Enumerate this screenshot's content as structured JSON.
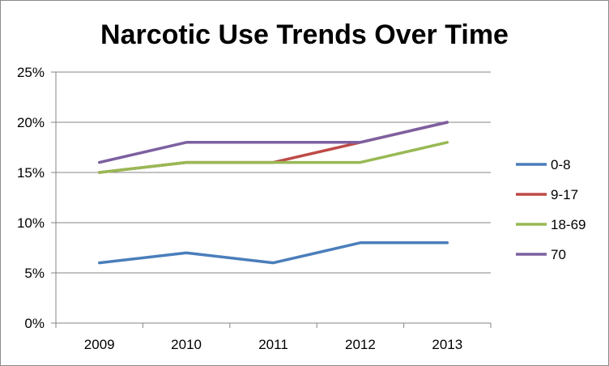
{
  "chart_data": {
    "type": "line",
    "title": "Narcotic Use Trends Over Time",
    "xlabel": "",
    "ylabel": "",
    "categories": [
      "2009",
      "2010",
      "2011",
      "2012",
      "2013"
    ],
    "ylim": [
      0,
      25
    ],
    "y_ticks": [
      0,
      5,
      10,
      15,
      20,
      25
    ],
    "y_tick_labels": [
      "0%",
      "5%",
      "10%",
      "15%",
      "20%",
      "25%"
    ],
    "grid": true,
    "legend_position": "right",
    "series": [
      {
        "name": "0-8",
        "color": "#4a7ebb",
        "values": [
          6,
          7,
          6,
          8,
          8
        ]
      },
      {
        "name": "9-17",
        "color": "#be4b48",
        "values": [
          15,
          16,
          16,
          18,
          20
        ]
      },
      {
        "name": "18-69",
        "color": "#98b954",
        "values": [
          15,
          16,
          16,
          16,
          18
        ]
      },
      {
        "name": "70",
        "color": "#7d60a0",
        "values": [
          16,
          18,
          18,
          18,
          20
        ]
      }
    ]
  }
}
